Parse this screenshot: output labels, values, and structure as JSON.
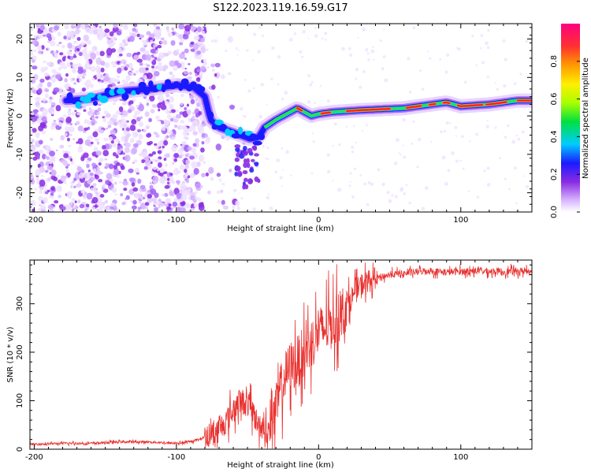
{
  "title": "S122.2023.119.16.59.G17",
  "chart_data": [
    {
      "type": "heatmap",
      "xlabel": "Height of straight line (km)",
      "ylabel": "Frequency (Hz)",
      "xlim": [
        -203,
        150
      ],
      "ylim": [
        -25,
        24
      ],
      "xticks": [
        -200,
        -100,
        0,
        100
      ],
      "yticks": [
        -20,
        -10,
        0,
        10,
        20
      ],
      "colorbar": {
        "label": "Normalized spectral amplitude",
        "ticks": [
          "0.0",
          "0.2",
          "0.4",
          "0.6",
          "0.8"
        ],
        "range": [
          0,
          1
        ]
      },
      "ridge": [
        {
          "x": -175,
          "y": 4
        },
        {
          "x": -160,
          "y": 4.5
        },
        {
          "x": -148,
          "y": 5.5
        },
        {
          "x": -135,
          "y": 6.5
        },
        {
          "x": -118,
          "y": 7
        },
        {
          "x": -100,
          "y": 8
        },
        {
          "x": -88,
          "y": 7.5
        },
        {
          "x": -80,
          "y": 5
        },
        {
          "x": -76,
          "y": -1
        },
        {
          "x": -70,
          "y": -3
        },
        {
          "x": -62,
          "y": -4
        },
        {
          "x": -55,
          "y": -5
        },
        {
          "x": -48,
          "y": -6
        },
        {
          "x": -42,
          "y": -5.5
        },
        {
          "x": -38,
          "y": -3
        },
        {
          "x": -30,
          "y": -1
        },
        {
          "x": -20,
          "y": 1
        },
        {
          "x": -15,
          "y": 2
        },
        {
          "x": -10,
          "y": 1
        },
        {
          "x": -5,
          "y": 0
        },
        {
          "x": 0,
          "y": 0.5
        },
        {
          "x": 10,
          "y": 1
        },
        {
          "x": 30,
          "y": 1.5
        },
        {
          "x": 60,
          "y": 2
        },
        {
          "x": 80,
          "y": 3
        },
        {
          "x": 90,
          "y": 3.5
        },
        {
          "x": 100,
          "y": 2.5
        },
        {
          "x": 120,
          "y": 3
        },
        {
          "x": 140,
          "y": 4
        },
        {
          "x": 150,
          "y": 4
        }
      ]
    },
    {
      "type": "line",
      "xlabel": "Height of straight line (km)",
      "ylabel": "SNR (10 * v/v)",
      "xlim": [
        -203,
        150
      ],
      "ylim": [
        0,
        390
      ],
      "xticks": [
        -200,
        -100,
        0,
        100
      ],
      "yticks": [
        0,
        100,
        200,
        300
      ],
      "series": [
        {
          "color": "#e8312f",
          "points": [
            {
              "x": -203,
              "y": 10
            },
            {
              "x": -180,
              "y": 12
            },
            {
              "x": -160,
              "y": 12
            },
            {
              "x": -140,
              "y": 15
            },
            {
              "x": -120,
              "y": 15
            },
            {
              "x": -100,
              "y": 12
            },
            {
              "x": -90,
              "y": 15
            },
            {
              "x": -80,
              "y": 25
            },
            {
              "x": -70,
              "y": 40
            },
            {
              "x": -62,
              "y": 70
            },
            {
              "x": -55,
              "y": 100
            },
            {
              "x": -48,
              "y": 90
            },
            {
              "x": -42,
              "y": 45
            },
            {
              "x": -35,
              "y": 30
            },
            {
              "x": -30,
              "y": 80
            },
            {
              "x": -25,
              "y": 140
            },
            {
              "x": -20,
              "y": 170
            },
            {
              "x": -15,
              "y": 180
            },
            {
              "x": -10,
              "y": 200
            },
            {
              "x": -5,
              "y": 220
            },
            {
              "x": 0,
              "y": 240
            },
            {
              "x": 5,
              "y": 250
            },
            {
              "x": 10,
              "y": 260
            },
            {
              "x": 15,
              "y": 275
            },
            {
              "x": 20,
              "y": 300
            },
            {
              "x": 25,
              "y": 320
            },
            {
              "x": 30,
              "y": 340
            },
            {
              "x": 40,
              "y": 352
            },
            {
              "x": 50,
              "y": 360
            },
            {
              "x": 60,
              "y": 362
            },
            {
              "x": 75,
              "y": 368
            },
            {
              "x": 90,
              "y": 365
            },
            {
              "x": 110,
              "y": 368
            },
            {
              "x": 130,
              "y": 366
            },
            {
              "x": 150,
              "y": 368
            }
          ]
        }
      ]
    }
  ]
}
